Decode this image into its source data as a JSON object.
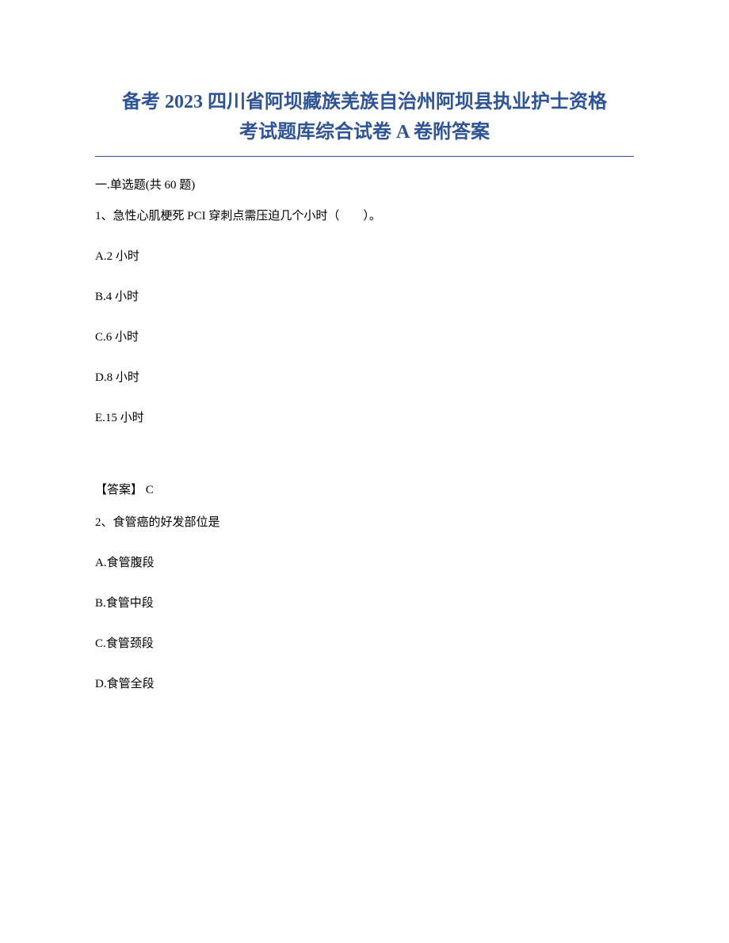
{
  "title_line1": "备考 2023 四川省阿坝藏族羌族自治州阿坝县执业护士资格",
  "title_line2": "考试题库综合试卷 A 卷附答案",
  "section_header": "一.单选题(共 60 题)",
  "q1": {
    "stem": "1、急性心肌梗死 PCI 穿刺点需压迫几个小时（　　）。",
    "options": {
      "A": "A.2 小时",
      "B": "B.4 小时",
      "C": "C.6 小时",
      "D": "D.8 小时",
      "E": "E.15 小时"
    },
    "answer": "【答案】 C"
  },
  "q2": {
    "stem": "2、食管癌的好发部位是",
    "options": {
      "A": "A.食管腹段",
      "B": "B.食管中段",
      "C": "C.食管颈段",
      "D": "D.食管全段"
    }
  },
  "colors": {
    "title_color": "#2e5496",
    "rule_color": "#2e5496",
    "text_color": "#000000",
    "background_color": "#ffffff"
  },
  "typography": {
    "title_fontsize": 24,
    "body_fontsize": 15,
    "title_weight": "bold"
  }
}
